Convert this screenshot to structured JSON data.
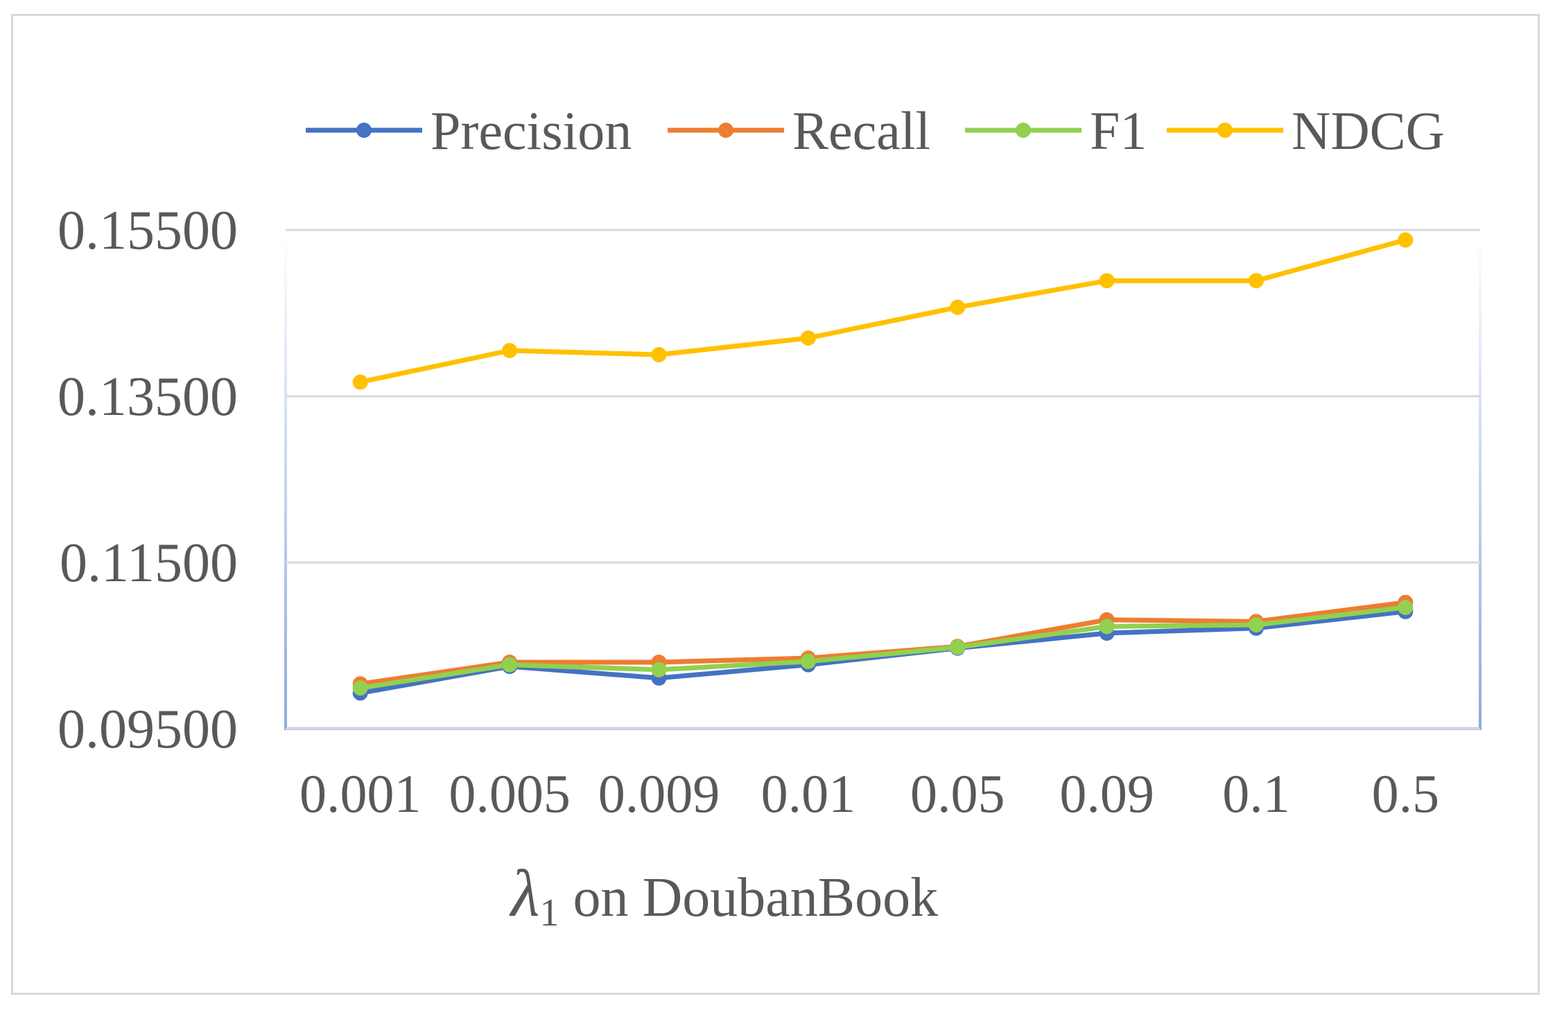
{
  "chart_data": {
    "type": "line",
    "title": "",
    "categories": [
      "0.001",
      "0.005",
      "0.009",
      "0.01",
      "0.05",
      "0.09",
      "0.1",
      "0.5"
    ],
    "series": [
      {
        "name": "Precision",
        "color": "#4472C4",
        "values": [
          0.0993,
          0.1025,
          0.1011,
          0.1027,
          0.1047,
          0.1065,
          0.1071,
          0.1091
        ]
      },
      {
        "name": "Recall",
        "color": "#ED7D31",
        "values": [
          0.1004,
          0.103,
          0.103,
          0.1035,
          0.1049,
          0.1081,
          0.1079,
          0.1102
        ]
      },
      {
        "name": "F1",
        "color": "#92D050",
        "values": [
          0.0999,
          0.1027,
          0.1021,
          0.1031,
          0.1048,
          0.1073,
          0.1075,
          0.1096
        ]
      },
      {
        "name": "NDCG",
        "color": "#FFC000",
        "values": [
          0.1367,
          0.1405,
          0.14,
          0.142,
          0.1457,
          0.1489,
          0.1489,
          0.1538
        ]
      }
    ],
    "yticks": [
      "0.09500",
      "0.11500",
      "0.13500",
      "0.15500"
    ],
    "ylim": [
      0.095,
      0.155
    ],
    "xlabel": {
      "symbol": "λ",
      "subscript": "1",
      "text": " on DoubanBook"
    },
    "ylabel": "",
    "legend_position": "top",
    "grid": true
  }
}
